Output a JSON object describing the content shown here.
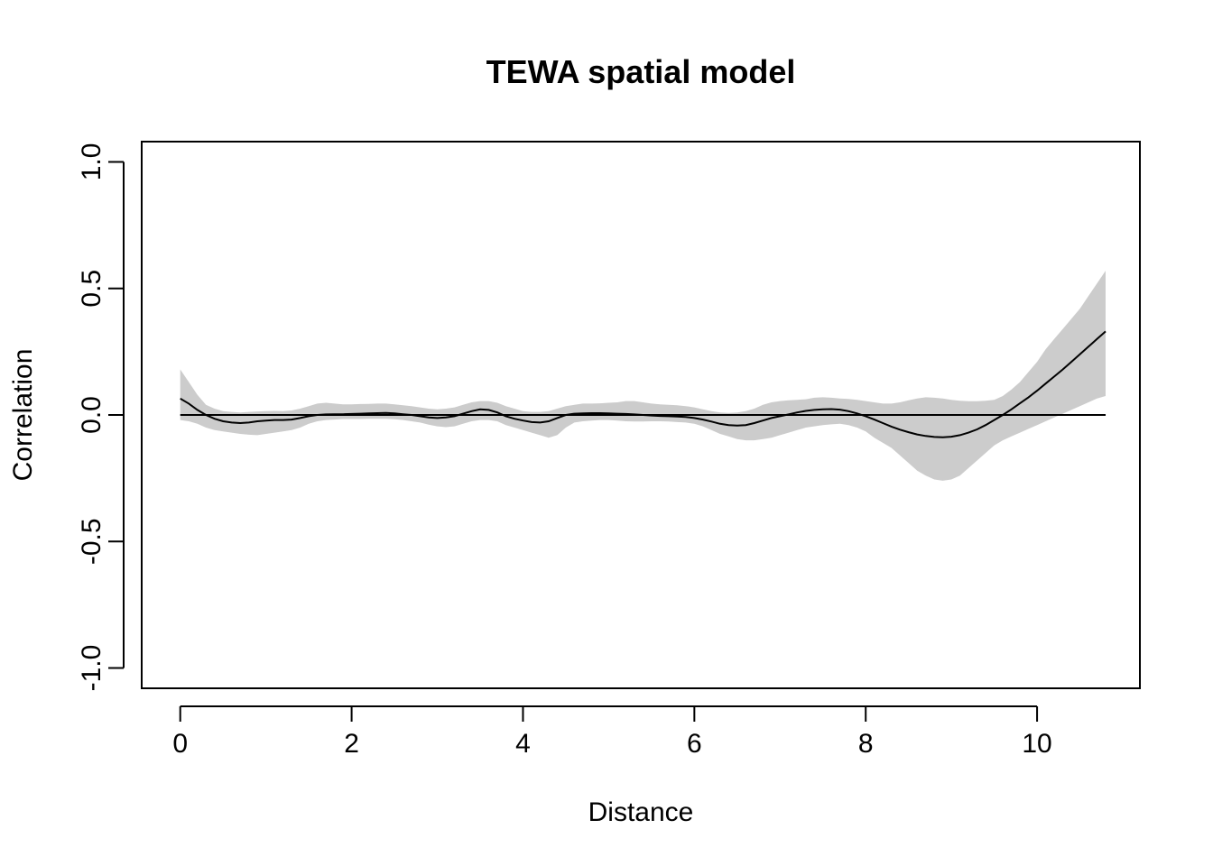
{
  "chart_data": {
    "type": "line",
    "title": "TEWA spatial model",
    "xlabel": "Distance",
    "ylabel": "Correlation",
    "xlim": [
      -0.45,
      11.2
    ],
    "ylim": [
      -1.08,
      1.08
    ],
    "x_ticks": [
      0,
      2,
      4,
      6,
      8,
      10
    ],
    "y_ticks": [
      -1.0,
      -0.5,
      0.0,
      0.5,
      1.0
    ],
    "x_tick_labels": [
      "0",
      "2",
      "4",
      "6",
      "8",
      "10"
    ],
    "y_tick_labels": [
      "-1.0",
      "-0.5",
      "0.0",
      "0.5",
      "1.0"
    ],
    "grid": false,
    "legend": "none",
    "reference_line": {
      "y": 0.0,
      "x_range": [
        0,
        10.8
      ],
      "color": "#000000"
    },
    "colors": {
      "line": "#000000",
      "band": "#cccccc",
      "frame": "#000000"
    },
    "series": [
      {
        "x": [
          0,
          0.1,
          0.2,
          0.3,
          0.4,
          0.5,
          0.6,
          0.7,
          0.8,
          0.9,
          1.0,
          1.1,
          1.2,
          1.3,
          1.4,
          1.5,
          1.6,
          1.7,
          1.8,
          1.9,
          2.0,
          2.1,
          2.2,
          2.3,
          2.4,
          2.5,
          2.6,
          2.7,
          2.8,
          2.9,
          3.0,
          3.1,
          3.2,
          3.3,
          3.4,
          3.5,
          3.6,
          3.7,
          3.8,
          3.9,
          4.0,
          4.1,
          4.2,
          4.3,
          4.4,
          4.5,
          4.6,
          4.7,
          4.8,
          4.9,
          5.0,
          5.1,
          5.2,
          5.3,
          5.4,
          5.5,
          5.6,
          5.7,
          5.8,
          5.9,
          6.0,
          6.1,
          6.2,
          6.3,
          6.4,
          6.5,
          6.6,
          6.7,
          6.8,
          6.9,
          7.0,
          7.1,
          7.2,
          7.3,
          7.4,
          7.5,
          7.6,
          7.7,
          7.8,
          7.9,
          8.0,
          8.1,
          8.2,
          8.3,
          8.4,
          8.5,
          8.6,
          8.7,
          8.8,
          8.9,
          9.0,
          9.1,
          9.2,
          9.3,
          9.4,
          9.5,
          9.6,
          9.7,
          9.8,
          9.9,
          10.0,
          10.1,
          10.2,
          10.3,
          10.4,
          10.5,
          10.6,
          10.7,
          10.8
        ],
        "y": [
          0.065,
          0.045,
          0.02,
          0.0,
          -0.015,
          -0.025,
          -0.03,
          -0.032,
          -0.03,
          -0.025,
          -0.022,
          -0.02,
          -0.02,
          -0.018,
          -0.012,
          -0.005,
          0.0,
          0.002,
          0.003,
          0.003,
          0.004,
          0.005,
          0.006,
          0.007,
          0.008,
          0.006,
          0.003,
          0.0,
          -0.005,
          -0.01,
          -0.012,
          -0.01,
          -0.005,
          0.005,
          0.015,
          0.022,
          0.02,
          0.01,
          -0.005,
          -0.015,
          -0.022,
          -0.028,
          -0.03,
          -0.025,
          -0.012,
          0.0,
          0.005,
          0.006,
          0.007,
          0.007,
          0.006,
          0.005,
          0.004,
          0.002,
          0.0,
          -0.002,
          -0.004,
          -0.005,
          -0.006,
          -0.008,
          -0.012,
          -0.018,
          -0.026,
          -0.035,
          -0.04,
          -0.042,
          -0.04,
          -0.032,
          -0.022,
          -0.012,
          -0.005,
          0.002,
          0.01,
          0.016,
          0.02,
          0.022,
          0.023,
          0.021,
          0.015,
          0.006,
          -0.005,
          -0.018,
          -0.032,
          -0.046,
          -0.058,
          -0.068,
          -0.077,
          -0.083,
          -0.087,
          -0.088,
          -0.086,
          -0.08,
          -0.07,
          -0.057,
          -0.04,
          -0.02,
          0.0,
          0.022,
          0.046,
          0.07,
          0.096,
          0.124,
          0.152,
          0.18,
          0.21,
          0.24,
          0.27,
          0.3,
          0.33
        ],
        "lower": [
          -0.02,
          -0.025,
          -0.035,
          -0.05,
          -0.06,
          -0.065,
          -0.07,
          -0.075,
          -0.078,
          -0.08,
          -0.075,
          -0.07,
          -0.065,
          -0.06,
          -0.05,
          -0.035,
          -0.025,
          -0.02,
          -0.018,
          -0.016,
          -0.016,
          -0.016,
          -0.015,
          -0.015,
          -0.015,
          -0.017,
          -0.02,
          -0.025,
          -0.03,
          -0.038,
          -0.045,
          -0.048,
          -0.045,
          -0.035,
          -0.025,
          -0.02,
          -0.02,
          -0.025,
          -0.04,
          -0.05,
          -0.06,
          -0.07,
          -0.08,
          -0.09,
          -0.08,
          -0.05,
          -0.03,
          -0.025,
          -0.022,
          -0.02,
          -0.02,
          -0.022,
          -0.025,
          -0.026,
          -0.026,
          -0.025,
          -0.025,
          -0.026,
          -0.028,
          -0.03,
          -0.035,
          -0.045,
          -0.06,
          -0.075,
          -0.085,
          -0.095,
          -0.1,
          -0.1,
          -0.095,
          -0.09,
          -0.08,
          -0.07,
          -0.06,
          -0.05,
          -0.045,
          -0.04,
          -0.037,
          -0.035,
          -0.04,
          -0.05,
          -0.065,
          -0.09,
          -0.11,
          -0.13,
          -0.16,
          -0.19,
          -0.22,
          -0.24,
          -0.255,
          -0.26,
          -0.255,
          -0.24,
          -0.21,
          -0.18,
          -0.15,
          -0.12,
          -0.1,
          -0.085,
          -0.07,
          -0.055,
          -0.04,
          -0.025,
          -0.01,
          0.005,
          0.02,
          0.035,
          0.05,
          0.065,
          0.075
        ],
        "upper": [
          0.18,
          0.13,
          0.08,
          0.04,
          0.025,
          0.015,
          0.012,
          0.01,
          0.012,
          0.014,
          0.015,
          0.016,
          0.015,
          0.018,
          0.025,
          0.035,
          0.045,
          0.048,
          0.045,
          0.042,
          0.042,
          0.043,
          0.044,
          0.045,
          0.045,
          0.042,
          0.038,
          0.035,
          0.03,
          0.025,
          0.022,
          0.025,
          0.03,
          0.04,
          0.05,
          0.055,
          0.055,
          0.048,
          0.035,
          0.025,
          0.015,
          0.012,
          0.012,
          0.015,
          0.025,
          0.035,
          0.04,
          0.045,
          0.045,
          0.046,
          0.048,
          0.05,
          0.055,
          0.055,
          0.05,
          0.045,
          0.042,
          0.04,
          0.038,
          0.035,
          0.03,
          0.022,
          0.015,
          0.01,
          0.008,
          0.01,
          0.015,
          0.025,
          0.04,
          0.05,
          0.055,
          0.058,
          0.06,
          0.062,
          0.068,
          0.07,
          0.068,
          0.065,
          0.063,
          0.06,
          0.055,
          0.05,
          0.045,
          0.045,
          0.05,
          0.058,
          0.065,
          0.07,
          0.068,
          0.065,
          0.06,
          0.056,
          0.054,
          0.054,
          0.056,
          0.06,
          0.075,
          0.1,
          0.13,
          0.17,
          0.21,
          0.26,
          0.3,
          0.34,
          0.38,
          0.42,
          0.47,
          0.52,
          0.57
        ]
      }
    ]
  }
}
